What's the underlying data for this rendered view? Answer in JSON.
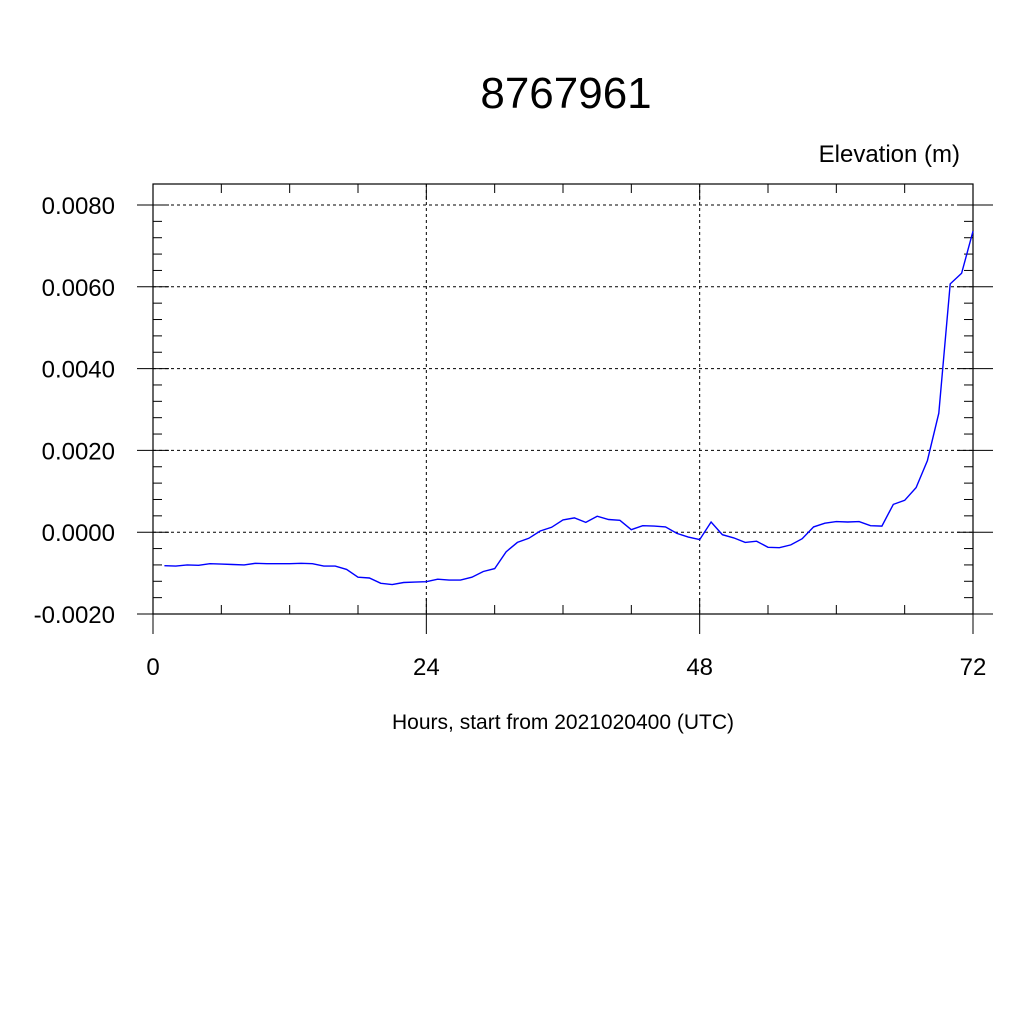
{
  "chart_data": {
    "type": "line",
    "title": "8767961",
    "ylabel": "Elevation (m)",
    "xlabel": "Hours, start from 2021020400 (UTC)",
    "xlim": [
      0,
      72
    ],
    "ylim": [
      -0.002,
      0.008
    ],
    "xticks": [
      0,
      24,
      48,
      72
    ],
    "xtick_labels": [
      "0",
      "24",
      "48",
      "72"
    ],
    "yticks": [
      -0.002,
      0,
      0.002,
      0.004,
      0.006,
      0.008
    ],
    "ytick_labels": [
      "-0.0020",
      "0.0000",
      "0.0020",
      "0.0040",
      "0.0060",
      "0.0080"
    ],
    "grid": true,
    "line_color": "#0000ff",
    "series": [
      {
        "x": [
          1,
          2,
          3,
          4,
          5,
          6,
          7,
          8,
          9,
          10,
          11,
          12,
          13,
          14,
          15,
          16,
          17,
          18,
          19,
          20,
          21,
          22,
          23,
          24,
          25,
          26,
          27,
          28,
          29,
          30,
          31,
          32,
          33,
          34,
          35,
          36,
          37,
          38,
          39,
          40,
          41,
          42,
          43,
          44,
          45,
          46,
          47,
          48,
          49,
          50,
          51,
          52,
          53,
          54,
          55,
          56,
          57,
          58,
          59,
          60,
          61,
          62,
          63,
          64,
          65,
          66,
          67,
          68,
          69,
          70,
          71,
          72
        ],
        "y": [
          -0.00082,
          -0.00083,
          -0.0008,
          -0.00081,
          -0.00077,
          -0.00078,
          -0.00079,
          -0.0008,
          -0.00076,
          -0.00077,
          -0.00077,
          -0.00077,
          -0.00076,
          -0.00077,
          -0.00083,
          -0.00083,
          -0.00091,
          -0.0011,
          -0.00112,
          -0.00125,
          -0.00128,
          -0.00123,
          -0.00122,
          -0.00121,
          -0.00115,
          -0.00117,
          -0.00117,
          -0.0011,
          -0.00096,
          -0.00089,
          -0.00048,
          -0.00025,
          -0.00015,
          3e-05,
          0.00012,
          0.0003,
          0.00035,
          0.00024,
          0.00039,
          0.00031,
          0.00029,
          6e-05,
          0.00016,
          0.00015,
          0.00013,
          -3e-05,
          -0.00012,
          -0.00018,
          0.00025,
          -6e-05,
          -0.00014,
          -0.00025,
          -0.00022,
          -0.00037,
          -0.00038,
          -0.00031,
          -0.00016,
          0.00013,
          0.00022,
          0.00026,
          0.00025,
          0.00026,
          0.00016,
          0.00015,
          0.00068,
          0.00078,
          0.00109,
          0.00175,
          0.00291,
          0.00607,
          0.00633,
          0.00736
        ]
      }
    ]
  }
}
